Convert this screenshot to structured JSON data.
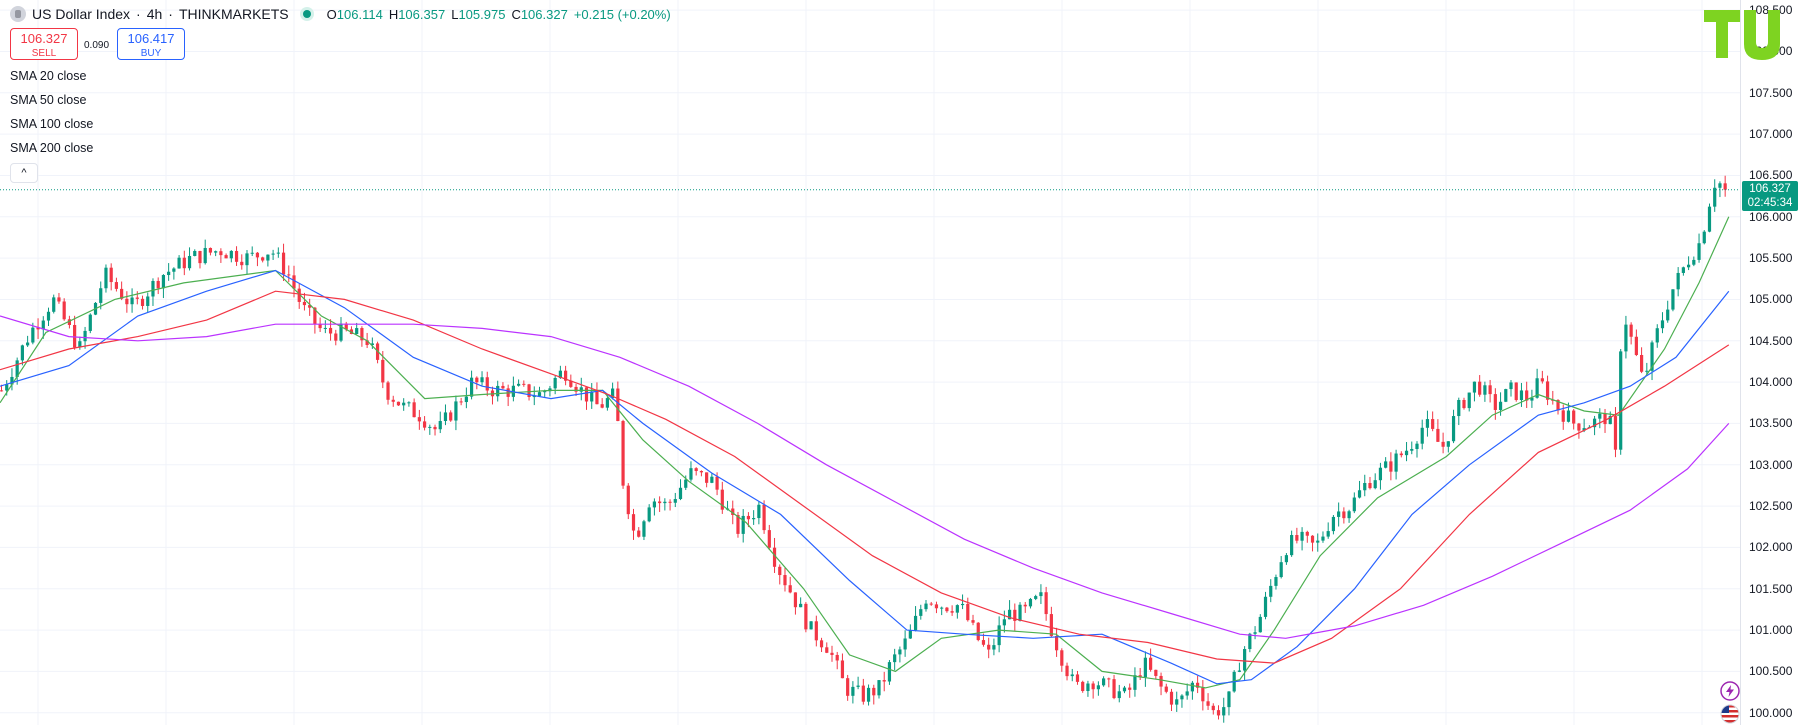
{
  "header": {
    "symbol": "US Dollar Index",
    "separator": "·",
    "interval": "4h",
    "exchange": "THINKMARKETS",
    "open_label": "O",
    "open": "106.114",
    "high_label": "H",
    "high": "106.357",
    "low_label": "L",
    "low": "105.975",
    "close_label": "C",
    "close": "106.327",
    "change": "+0.215 (+0.20%)"
  },
  "trade": {
    "sell_price": "106.327",
    "sell_label": "SELL",
    "spread": "0.090",
    "buy_price": "106.417",
    "buy_label": "BUY"
  },
  "indicators": [
    "SMA 20 close",
    "SMA 50 close",
    "SMA 100 close",
    "SMA 200 close"
  ],
  "collapse_glyph": "^",
  "price_axis": {
    "ticks": [
      "108.500",
      "108.000",
      "107.500",
      "107.000",
      "106.500",
      "106.000",
      "105.500",
      "105.000",
      "104.500",
      "104.000",
      "103.500",
      "103.000",
      "102.500",
      "102.000",
      "101.500",
      "101.000",
      "100.500",
      "100.000"
    ],
    "range": [
      99.9,
      108.55
    ]
  },
  "current_price": {
    "price": "106.327",
    "countdown": "02:45:34"
  },
  "colors": {
    "up": "#089981",
    "down": "#f23645",
    "sma20": "#4caf50",
    "sma50": "#2962ff",
    "sma100": "#f23645",
    "sma200": "#bb33ff",
    "logo": "#7ed321"
  },
  "icons": {
    "logo": "tu-logo",
    "flash": "lightning-icon",
    "flag": "us-flag-icon"
  },
  "chart_data": {
    "type": "candlestick",
    "title": "US Dollar Index · 4h · THINKMARKETS",
    "ylim": [
      99.9,
      108.55
    ],
    "series": [
      {
        "name": "Price",
        "close_path": [
          [
            0,
            103.9
          ],
          [
            25,
            104.6
          ],
          [
            45,
            105.0
          ],
          [
            68,
            104.4
          ],
          [
            90,
            105.3
          ],
          [
            115,
            104.9
          ],
          [
            140,
            105.3
          ],
          [
            165,
            105.5
          ],
          [
            190,
            105.6
          ],
          [
            215,
            105.5
          ],
          [
            235,
            105.6
          ],
          [
            250,
            105.3
          ],
          [
            262,
            104.9
          ],
          [
            280,
            104.6
          ],
          [
            300,
            104.6
          ],
          [
            320,
            104.5
          ],
          [
            335,
            103.9
          ],
          [
            350,
            103.7
          ],
          [
            365,
            103.6
          ],
          [
            380,
            103.4
          ],
          [
            395,
            103.7
          ],
          [
            410,
            104.0
          ],
          [
            430,
            103.9
          ],
          [
            450,
            103.9
          ],
          [
            470,
            103.85
          ],
          [
            490,
            104.15
          ],
          [
            505,
            103.9
          ],
          [
            520,
            103.7
          ],
          [
            535,
            103.85
          ],
          [
            540,
            102.9
          ],
          [
            552,
            102.1
          ],
          [
            565,
            102.6
          ],
          [
            580,
            102.5
          ],
          [
            600,
            102.9
          ],
          [
            620,
            102.8
          ],
          [
            640,
            102.2
          ],
          [
            660,
            102.5
          ],
          [
            675,
            101.8
          ],
          [
            690,
            101.4
          ],
          [
            705,
            101.0
          ],
          [
            720,
            100.8
          ],
          [
            735,
            100.3
          ],
          [
            750,
            100.2
          ],
          [
            765,
            100.3
          ],
          [
            775,
            100.6
          ],
          [
            790,
            100.9
          ],
          [
            805,
            101.4
          ],
          [
            820,
            101.3
          ],
          [
            835,
            101.3
          ],
          [
            850,
            100.9
          ],
          [
            860,
            100.7
          ],
          [
            875,
            101.2
          ],
          [
            890,
            101.2
          ],
          [
            905,
            101.4
          ],
          [
            920,
            100.8
          ],
          [
            935,
            100.3
          ],
          [
            950,
            100.4
          ],
          [
            965,
            100.3
          ],
          [
            980,
            100.2
          ],
          [
            995,
            100.6
          ],
          [
            1010,
            100.3
          ],
          [
            1025,
            100.1
          ],
          [
            1040,
            100.4
          ],
          [
            1055,
            100.0
          ],
          [
            1068,
            100.1
          ],
          [
            1080,
            100.7
          ],
          [
            1095,
            101.1
          ],
          [
            1105,
            101.5
          ],
          [
            1118,
            102.0
          ],
          [
            1130,
            102.1
          ],
          [
            1145,
            102.0
          ],
          [
            1160,
            102.4
          ],
          [
            1175,
            102.5
          ],
          [
            1190,
            102.8
          ],
          [
            1210,
            103.0
          ],
          [
            1225,
            103.2
          ],
          [
            1240,
            103.5
          ],
          [
            1255,
            103.2
          ],
          [
            1270,
            103.7
          ],
          [
            1285,
            104.0
          ],
          [
            1300,
            103.7
          ],
          [
            1315,
            103.9
          ],
          [
            1330,
            103.8
          ],
          [
            1340,
            104.0
          ],
          [
            1355,
            103.7
          ],
          [
            1370,
            103.5
          ],
          [
            1385,
            103.5
          ],
          [
            1400,
            103.6
          ],
          [
            1406,
            103.1
          ],
          [
            1412,
            104.9
          ],
          [
            1420,
            104.5
          ],
          [
            1430,
            104.0
          ],
          [
            1440,
            104.5
          ],
          [
            1455,
            105.1
          ],
          [
            1470,
            105.5
          ],
          [
            1480,
            105.7
          ],
          [
            1488,
            106.2
          ],
          [
            1494,
            106.5
          ],
          [
            1500,
            106.3
          ],
          [
            1506,
            106.327
          ]
        ]
      },
      {
        "name": "SMA 20 close",
        "path": [
          [
            0,
            103.75
          ],
          [
            40,
            104.6
          ],
          [
            100,
            105.0
          ],
          [
            160,
            105.2
          ],
          [
            240,
            105.35
          ],
          [
            280,
            104.8
          ],
          [
            320,
            104.5
          ],
          [
            370,
            103.8
          ],
          [
            420,
            103.85
          ],
          [
            480,
            103.9
          ],
          [
            525,
            103.9
          ],
          [
            560,
            103.3
          ],
          [
            600,
            102.8
          ],
          [
            650,
            102.3
          ],
          [
            700,
            101.5
          ],
          [
            740,
            100.7
          ],
          [
            780,
            100.5
          ],
          [
            820,
            100.9
          ],
          [
            870,
            101.0
          ],
          [
            920,
            100.95
          ],
          [
            960,
            100.5
          ],
          [
            1010,
            100.4
          ],
          [
            1050,
            100.3
          ],
          [
            1080,
            100.4
          ],
          [
            1110,
            101.0
          ],
          [
            1150,
            101.9
          ],
          [
            1200,
            102.6
          ],
          [
            1260,
            103.1
          ],
          [
            1300,
            103.6
          ],
          [
            1340,
            103.85
          ],
          [
            1380,
            103.65
          ],
          [
            1410,
            103.6
          ],
          [
            1450,
            104.4
          ],
          [
            1480,
            105.2
          ],
          [
            1506,
            106.0
          ]
        ]
      },
      {
        "name": "SMA 50 close",
        "path": [
          [
            0,
            103.95
          ],
          [
            60,
            104.2
          ],
          [
            120,
            104.8
          ],
          [
            180,
            105.1
          ],
          [
            240,
            105.35
          ],
          [
            300,
            104.9
          ],
          [
            360,
            104.3
          ],
          [
            420,
            103.95
          ],
          [
            480,
            103.8
          ],
          [
            525,
            103.9
          ],
          [
            560,
            103.5
          ],
          [
            620,
            102.9
          ],
          [
            680,
            102.4
          ],
          [
            740,
            101.6
          ],
          [
            790,
            101.0
          ],
          [
            840,
            100.95
          ],
          [
            900,
            100.9
          ],
          [
            960,
            100.95
          ],
          [
            1020,
            100.6
          ],
          [
            1060,
            100.35
          ],
          [
            1090,
            100.4
          ],
          [
            1130,
            100.8
          ],
          [
            1180,
            101.5
          ],
          [
            1230,
            102.4
          ],
          [
            1280,
            103.0
          ],
          [
            1340,
            103.6
          ],
          [
            1380,
            103.75
          ],
          [
            1420,
            103.95
          ],
          [
            1460,
            104.3
          ],
          [
            1506,
            105.1
          ]
        ]
      },
      {
        "name": "SMA 100 close",
        "path": [
          [
            0,
            104.15
          ],
          [
            60,
            104.4
          ],
          [
            120,
            104.55
          ],
          [
            180,
            104.75
          ],
          [
            240,
            105.1
          ],
          [
            300,
            105.0
          ],
          [
            360,
            104.75
          ],
          [
            420,
            104.4
          ],
          [
            480,
            104.1
          ],
          [
            530,
            103.85
          ],
          [
            580,
            103.55
          ],
          [
            640,
            103.1
          ],
          [
            700,
            102.5
          ],
          [
            760,
            101.9
          ],
          [
            820,
            101.45
          ],
          [
            880,
            101.15
          ],
          [
            940,
            100.95
          ],
          [
            1000,
            100.85
          ],
          [
            1060,
            100.65
          ],
          [
            1110,
            100.6
          ],
          [
            1160,
            100.9
          ],
          [
            1220,
            101.5
          ],
          [
            1280,
            102.4
          ],
          [
            1340,
            103.15
          ],
          [
            1400,
            103.55
          ],
          [
            1450,
            103.95
          ],
          [
            1506,
            104.45
          ]
        ]
      },
      {
        "name": "SMA 200 close",
        "path": [
          [
            0,
            104.8
          ],
          [
            60,
            104.55
          ],
          [
            120,
            104.5
          ],
          [
            180,
            104.55
          ],
          [
            240,
            104.7
          ],
          [
            300,
            104.7
          ],
          [
            360,
            104.7
          ],
          [
            420,
            104.65
          ],
          [
            480,
            104.55
          ],
          [
            540,
            104.3
          ],
          [
            600,
            103.95
          ],
          [
            660,
            103.5
          ],
          [
            720,
            103.0
          ],
          [
            780,
            102.55
          ],
          [
            840,
            102.1
          ],
          [
            900,
            101.75
          ],
          [
            960,
            101.45
          ],
          [
            1020,
            101.2
          ],
          [
            1080,
            100.95
          ],
          [
            1120,
            100.9
          ],
          [
            1180,
            101.05
          ],
          [
            1240,
            101.3
          ],
          [
            1300,
            101.65
          ],
          [
            1360,
            102.05
          ],
          [
            1420,
            102.45
          ],
          [
            1470,
            102.95
          ],
          [
            1506,
            103.5
          ]
        ]
      }
    ],
    "last_price": 106.327
  }
}
